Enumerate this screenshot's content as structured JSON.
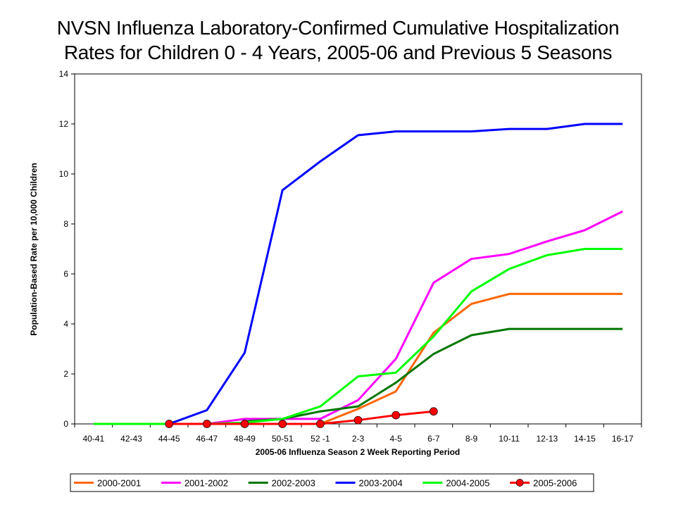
{
  "chart_data": {
    "type": "line",
    "title_line1": "NVSN Influenza Laboratory-Confirmed Cumulative Hospitalization",
    "title_line2": "Rates for Children 0 - 4 Years, 2005-06 and Previous 5 Seasons",
    "xlabel": "2005-06 Influenza Season 2 Week Reporting Period",
    "ylabel": "Population-Based Rate per 10,000 Children",
    "ylim": [
      0,
      14
    ],
    "yticks": [
      "0",
      "2",
      "4",
      "6",
      "8",
      "10",
      "12",
      "14"
    ],
    "grid": false,
    "legend_position": "bottom",
    "categories": [
      "40-41",
      "42-43",
      "44-45",
      "46-47",
      "48-49",
      "50-51",
      "52 -1",
      "2-3",
      "4-5",
      "6-7",
      "8-9",
      "10-11",
      "12-13",
      "14-15",
      "16-17"
    ],
    "series": [
      {
        "name": "2000-2001",
        "color": "#FF6600",
        "marker": false,
        "values": [
          null,
          null,
          null,
          null,
          null,
          null,
          0,
          0.6,
          1.3,
          3.65,
          4.8,
          5.2,
          5.2,
          5.2,
          5.2
        ]
      },
      {
        "name": "2001-2002",
        "color": "#FF00FF",
        "marker": false,
        "values": [
          null,
          null,
          null,
          0,
          0.2,
          0.2,
          0.2,
          0.95,
          2.6,
          5.65,
          6.6,
          6.8,
          7.3,
          7.75,
          8.5
        ]
      },
      {
        "name": "2002-2003",
        "color": "#007700",
        "marker": false,
        "values": [
          null,
          null,
          null,
          null,
          0.1,
          0.2,
          0.5,
          0.7,
          1.65,
          2.8,
          3.55,
          3.8,
          3.8,
          3.8,
          3.8
        ]
      },
      {
        "name": "2003-2004",
        "color": "#0000FF",
        "marker": false,
        "values": [
          null,
          null,
          0,
          0.55,
          2.85,
          9.35,
          10.5,
          11.55,
          11.7,
          11.7,
          11.7,
          11.8,
          11.8,
          12.0,
          12.0
        ]
      },
      {
        "name": "2004-2005",
        "color": "#00FF00",
        "marker": false,
        "values": [
          0,
          0,
          0,
          0,
          0.05,
          0.2,
          0.7,
          1.9,
          2.05,
          3.5,
          5.3,
          6.2,
          6.75,
          7.0,
          7.0
        ]
      },
      {
        "name": "2005-2006",
        "color": "#FF0000",
        "marker": true,
        "values": [
          null,
          null,
          0,
          0,
          0,
          0,
          0,
          0.15,
          0.35,
          0.5,
          null,
          null,
          null,
          null,
          null
        ]
      }
    ]
  }
}
